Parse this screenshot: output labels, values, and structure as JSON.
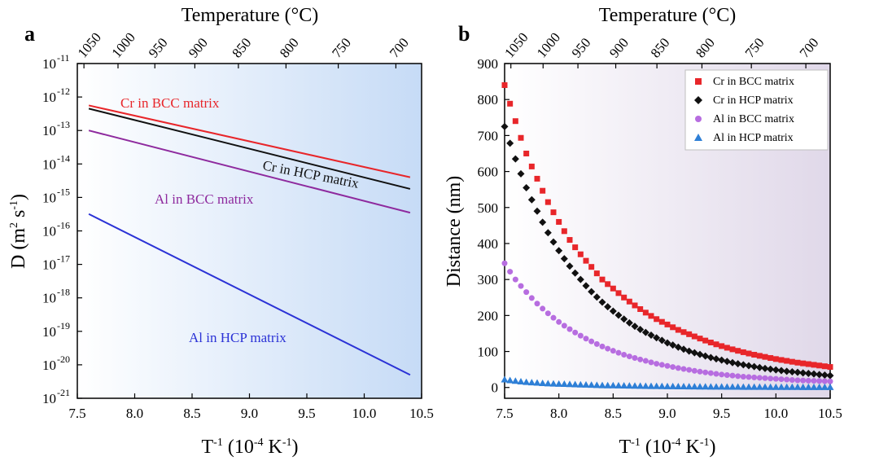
{
  "chart_data": [
    {
      "panel": "a",
      "type": "line",
      "xlabel": "T-1 (10-4 K-1)",
      "x2label": "Temperature (°C)",
      "ylabel": "D (m2 s-1)",
      "xlim": [
        7.5,
        10.5
      ],
      "ylim": [
        -21,
        -11
      ],
      "yscale": "log",
      "grid": false,
      "xticks": [
        "7.5",
        "8.0",
        "8.5",
        "9.0",
        "9.5",
        "10.0",
        "10.5"
      ],
      "yticks": [
        {
          "base": "10",
          "exp": "-11",
          "value": -11
        },
        {
          "base": "10",
          "exp": "-12",
          "value": -12
        },
        {
          "base": "10",
          "exp": "-13",
          "value": -13
        },
        {
          "base": "10",
          "exp": "-14",
          "value": -14
        },
        {
          "base": "10",
          "exp": "-15",
          "value": -15
        },
        {
          "base": "10",
          "exp": "-16",
          "value": -16
        },
        {
          "base": "10",
          "exp": "-17",
          "value": -17
        },
        {
          "base": "10",
          "exp": "-18",
          "value": -18
        },
        {
          "base": "10",
          "exp": "-19",
          "value": -19
        },
        {
          "base": "10",
          "exp": "-20",
          "value": -20
        },
        {
          "base": "10",
          "exp": "-21",
          "value": -21
        }
      ],
      "top_ticks": [
        1050,
        1000,
        950,
        900,
        850,
        800,
        750,
        700
      ],
      "series": [
        {
          "name": "Cr in BCC matrix",
          "color": "#e8262a",
          "x": [
            7.6,
            10.4
          ],
          "y": [
            "5.6e-13",
            "4.0e-15"
          ]
        },
        {
          "name": "Cr in HCP matrix",
          "color": "#111111",
          "x": [
            7.6,
            10.4
          ],
          "y": [
            "4.5e-13",
            "1.8e-15"
          ]
        },
        {
          "name": "Al in BCC matrix",
          "color": "#8e2a9e",
          "x": [
            7.6,
            10.4
          ],
          "y": [
            "1.0e-13",
            "3.5e-16"
          ]
        },
        {
          "name": "Al in HCP matrix",
          "color": "#2b32d6",
          "x": [
            7.6,
            10.4
          ],
          "y": [
            "3.2e-16",
            "5.0e-21"
          ]
        }
      ]
    },
    {
      "panel": "b",
      "type": "scatter",
      "xlabel": "T-1 (10-4 K-1)",
      "x2label": "Temperature (°C)",
      "ylabel": "Distance (nm)",
      "xlim": [
        7.5,
        10.5
      ],
      "ylim": [
        -30,
        900
      ],
      "grid": false,
      "legend_position": "top-right",
      "xticks": [
        "7.5",
        "8.0",
        "8.5",
        "9.0",
        "9.5",
        "10.0",
        "10.5"
      ],
      "yticks": [
        0,
        100,
        200,
        300,
        400,
        500,
        600,
        700,
        800,
        900
      ],
      "top_ticks": [
        1050,
        1000,
        950,
        900,
        850,
        800,
        750,
        700
      ],
      "series": [
        {
          "name": "Cr in BCC matrix",
          "marker": "square",
          "color": "#e8262a",
          "x": [
            7.5,
            7.6,
            7.7,
            7.8,
            7.9,
            8.0,
            8.1,
            8.2,
            8.3,
            8.4,
            8.5,
            8.6,
            8.7,
            8.8,
            8.9,
            9.0,
            9.1,
            9.2,
            9.3,
            9.4,
            9.5,
            9.6,
            9.7,
            9.8,
            9.9,
            10.0,
            10.1,
            10.2,
            10.3,
            10.4,
            10.5
          ],
          "y": [
            840,
            740,
            650,
            580,
            515,
            460,
            410,
            370,
            335,
            300,
            275,
            250,
            228,
            208,
            190,
            175,
            160,
            148,
            136,
            125,
            115,
            106,
            98,
            91,
            85,
            79,
            74,
            69,
            65,
            61,
            57
          ]
        },
        {
          "name": "Cr in HCP matrix",
          "marker": "diamond",
          "color": "#111111",
          "x": [
            7.5,
            7.6,
            7.7,
            7.8,
            7.9,
            8.0,
            8.1,
            8.2,
            8.3,
            8.4,
            8.5,
            8.6,
            8.7,
            8.8,
            8.9,
            9.0,
            9.1,
            9.2,
            9.3,
            9.4,
            9.5,
            9.6,
            9.7,
            9.8,
            9.9,
            10.0,
            10.1,
            10.2,
            10.3,
            10.4,
            10.5
          ],
          "y": [
            725,
            635,
            555,
            490,
            430,
            380,
            337,
            300,
            266,
            237,
            212,
            190,
            170,
            153,
            138,
            124,
            112,
            101,
            92,
            83,
            76,
            69,
            63,
            58,
            53,
            49,
            45,
            42,
            39,
            36,
            33
          ]
        },
        {
          "name": "Al in BCC matrix",
          "marker": "circle",
          "color": "#b76de0",
          "x": [
            7.5,
            7.6,
            7.7,
            7.8,
            7.9,
            8.0,
            8.1,
            8.2,
            8.3,
            8.4,
            8.5,
            8.6,
            8.7,
            8.8,
            8.9,
            9.0,
            9.1,
            9.2,
            9.3,
            9.4,
            9.5,
            9.6,
            9.7,
            9.8,
            9.9,
            10.0,
            10.1,
            10.2,
            10.3,
            10.4,
            10.5
          ],
          "y": [
            345,
            300,
            265,
            233,
            206,
            182,
            162,
            144,
            128,
            114,
            102,
            91,
            82,
            74,
            66,
            60,
            54,
            49,
            44,
            40,
            36,
            33,
            30,
            28,
            26,
            24,
            22,
            20,
            19,
            18,
            17
          ]
        },
        {
          "name": "Al in HCP matrix",
          "marker": "triangle",
          "color": "#2e7fd6",
          "x": [
            7.5,
            7.6,
            7.7,
            7.8,
            7.9,
            8.0,
            8.1,
            8.2,
            8.3,
            8.4,
            8.5,
            8.6,
            8.7,
            8.8,
            8.9,
            9.0,
            9.1,
            9.2,
            9.3,
            9.4,
            9.5,
            9.6,
            9.7,
            9.8,
            9.9,
            10.0,
            10.1,
            10.2,
            10.3,
            10.4,
            10.5
          ],
          "y": [
            22,
            18,
            15,
            13,
            11,
            10,
            9,
            8,
            7,
            6,
            5.5,
            5,
            4.5,
            4,
            3.6,
            3.2,
            2.9,
            2.6,
            2.3,
            2.1,
            1.9,
            1.7,
            1.5,
            1.4,
            1.3,
            1.2,
            1.1,
            1.0,
            0.9,
            0.8,
            0.7
          ]
        }
      ]
    }
  ]
}
